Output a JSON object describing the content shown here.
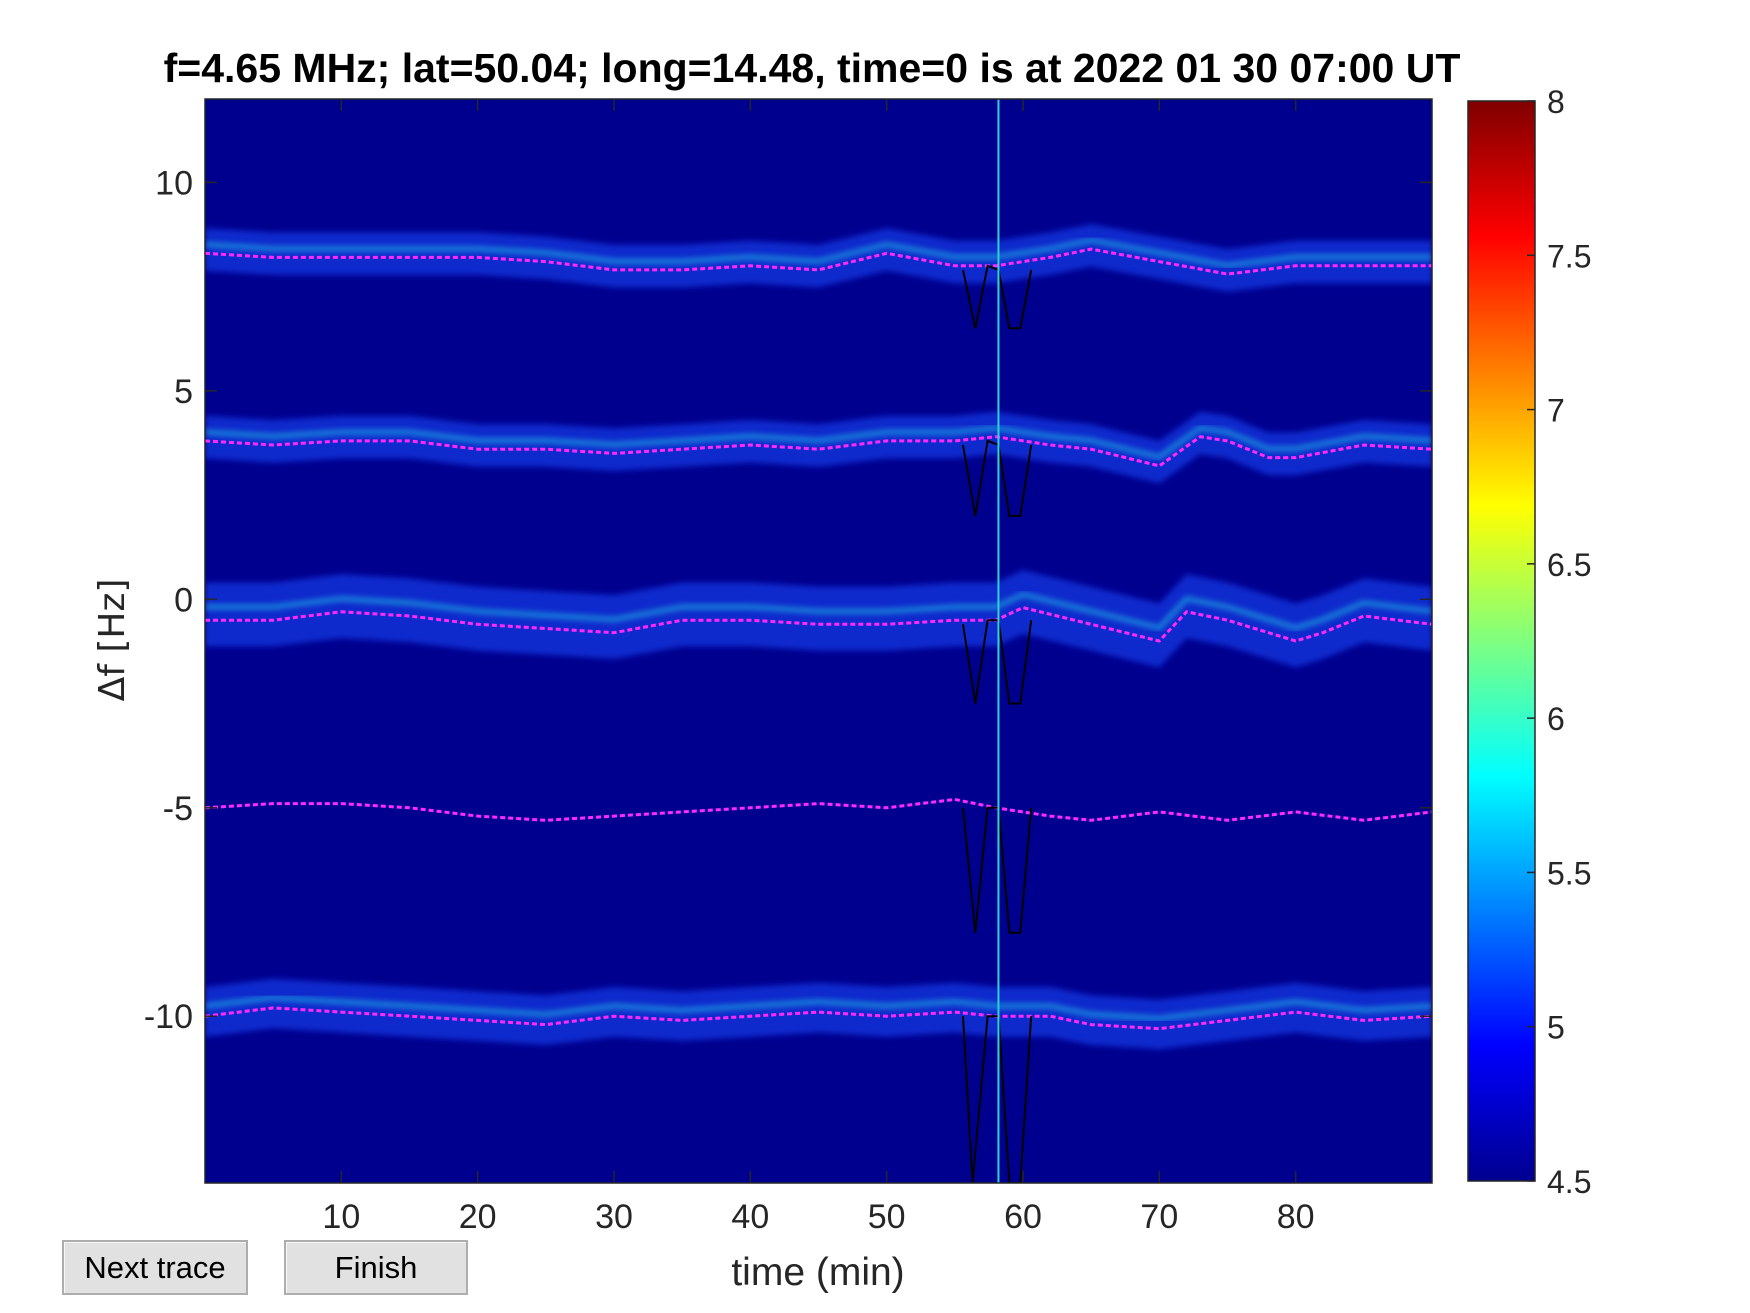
{
  "chart_data": {
    "type": "heatmap",
    "title": "f=4.65 MHz;  lat=50.04; long=14.48, time=0 is at 2022 01 30 07:00 UT",
    "xlabel": "time (min)",
    "ylabel": "Δf [Hz]",
    "xlim": [
      0,
      90
    ],
    "ylim": [
      -14,
      12
    ],
    "xticks": [
      10,
      20,
      30,
      40,
      50,
      60,
      70,
      80
    ],
    "yticks": [
      -10,
      -5,
      0,
      5,
      10
    ],
    "ytick_labels": [
      "-10",
      "-5",
      "0",
      "5",
      "10"
    ],
    "colorbar": {
      "range": [
        4.5,
        8
      ],
      "ticks": [
        4.5,
        5,
        5.5,
        6,
        6.5,
        7,
        7.5,
        8
      ],
      "tick_labels": [
        "4.5",
        "5",
        "5.5",
        "6",
        "6.5",
        "7",
        "7.5",
        "8"
      ],
      "colormap": "jet",
      "position": "right"
    },
    "background_color": "#00008f",
    "cursor_line": {
      "x": 58.2,
      "color": "#2fd0d8"
    },
    "trace_color": "#ff2aff",
    "grid": false,
    "traces": [
      {
        "base": 8.2,
        "x": [
          0,
          5,
          10,
          15,
          20,
          25,
          30,
          35,
          40,
          45,
          50,
          55,
          58,
          62,
          65,
          70,
          75,
          80,
          85,
          90
        ],
        "y": [
          8.3,
          8.2,
          8.2,
          8.2,
          8.2,
          8.1,
          7.9,
          7.9,
          8.0,
          7.9,
          8.3,
          8.0,
          8.0,
          8.2,
          8.4,
          8.1,
          7.8,
          8.0,
          8.0,
          8.0
        ]
      },
      {
        "base": 3.7,
        "x": [
          0,
          5,
          10,
          15,
          20,
          25,
          30,
          35,
          40,
          45,
          50,
          55,
          58,
          62,
          65,
          70,
          73,
          75,
          78,
          80,
          85,
          90
        ],
        "y": [
          3.8,
          3.7,
          3.8,
          3.8,
          3.6,
          3.6,
          3.5,
          3.6,
          3.7,
          3.6,
          3.8,
          3.8,
          3.9,
          3.7,
          3.6,
          3.2,
          3.9,
          3.8,
          3.4,
          3.4,
          3.7,
          3.6
        ]
      },
      {
        "base": -0.5,
        "x": [
          0,
          5,
          10,
          15,
          20,
          25,
          30,
          35,
          40,
          45,
          50,
          55,
          58,
          60,
          65,
          70,
          72,
          75,
          80,
          82,
          85,
          90
        ],
        "y": [
          -0.5,
          -0.5,
          -0.3,
          -0.4,
          -0.6,
          -0.7,
          -0.8,
          -0.5,
          -0.5,
          -0.6,
          -0.6,
          -0.5,
          -0.5,
          -0.2,
          -0.6,
          -1.0,
          -0.3,
          -0.5,
          -1.0,
          -0.8,
          -0.4,
          -0.6
        ]
      },
      {
        "base": -5.0,
        "x": [
          0,
          5,
          10,
          15,
          20,
          25,
          30,
          35,
          40,
          45,
          50,
          55,
          58,
          62,
          65,
          70,
          75,
          80,
          85,
          90
        ],
        "y": [
          -5.0,
          -4.9,
          -4.9,
          -5.0,
          -5.2,
          -5.3,
          -5.2,
          -5.1,
          -5.0,
          -4.9,
          -5.0,
          -4.8,
          -5.0,
          -5.2,
          -5.3,
          -5.1,
          -5.3,
          -5.1,
          -5.3,
          -5.1
        ]
      },
      {
        "base": -10.0,
        "x": [
          0,
          5,
          10,
          15,
          20,
          25,
          30,
          35,
          40,
          45,
          50,
          55,
          58,
          62,
          65,
          70,
          75,
          80,
          85,
          90
        ],
        "y": [
          -10.0,
          -9.8,
          -9.9,
          -10.0,
          -10.1,
          -10.2,
          -10.0,
          -10.1,
          -10.0,
          -9.9,
          -10.0,
          -9.9,
          -10.0,
          -10.0,
          -10.2,
          -10.3,
          -10.1,
          -9.9,
          -10.1,
          -10.0
        ]
      }
    ],
    "markers": [
      {
        "x": [
          55.6,
          56.5,
          57.4,
          58.2,
          59.0,
          59.8,
          60.6
        ],
        "y": [
          7.9,
          6.5,
          8.0,
          7.9,
          6.5,
          6.5,
          7.9
        ]
      },
      {
        "x": [
          55.6,
          56.5,
          57.4,
          58.2,
          59.0,
          59.8,
          60.6
        ],
        "y": [
          3.7,
          2.0,
          3.8,
          3.7,
          2.0,
          2.0,
          3.7
        ]
      },
      {
        "x": [
          55.6,
          56.5,
          57.4,
          58.2,
          59.0,
          59.8,
          60.6
        ],
        "y": [
          -0.6,
          -2.5,
          -0.5,
          -0.5,
          -2.5,
          -2.5,
          -0.5
        ]
      },
      {
        "x": [
          55.6,
          56.5,
          57.4,
          58.2,
          59.0,
          59.8,
          60.6
        ],
        "y": [
          -5.0,
          -8.0,
          -5.0,
          -5.0,
          -8.0,
          -8.0,
          -5.0
        ]
      },
      {
        "x": [
          55.6,
          56.3,
          57.4,
          58.2,
          59.0,
          59.8,
          60.6
        ],
        "y": [
          -10.0,
          -14.0,
          -10.0,
          -10.0,
          -14.0,
          -14.0,
          -10.0
        ]
      }
    ]
  },
  "buttons": {
    "next_trace": "Next trace",
    "finish": "Finish"
  }
}
